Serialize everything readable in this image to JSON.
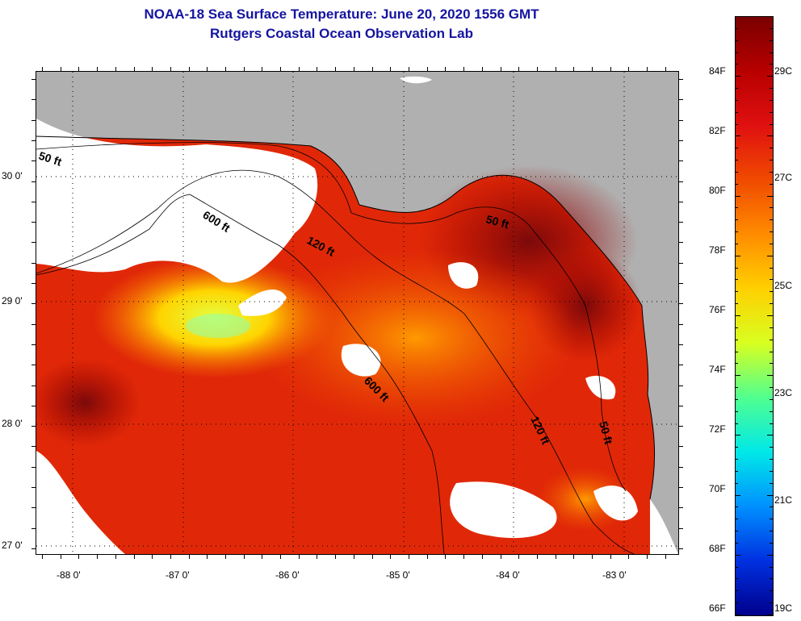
{
  "header": {
    "title_line1": "NOAA-18 Sea Surface Temperature:  June 20, 2020 1556 GMT",
    "title_line2": "Rutgers Coastal Ocean Observation Lab"
  },
  "map": {
    "latitude_labels": [
      "30 0'",
      "29 0'",
      "28 0'",
      "27 0'"
    ],
    "longitude_labels": [
      "-88 0'",
      "-87 0'",
      "-86 0'",
      "-85 0'",
      "-84 0'",
      "-83 0'"
    ],
    "depth_contours": [
      "50 ft",
      "600 ft",
      "120 ft",
      "50 ft",
      "600 ft",
      "120 ft",
      "50 ft"
    ]
  },
  "colorbar": {
    "fahrenheit_labels": [
      "84F",
      "82F",
      "80F",
      "78F",
      "76F",
      "74F",
      "72F",
      "70F",
      "68F",
      "66F"
    ],
    "celsius_labels": [
      "29C",
      "27C",
      "25C",
      "23C",
      "21C",
      "19C"
    ],
    "colors": [
      "#7a0000",
      "#b80000",
      "#e01010",
      "#f04a00",
      "#ff8c00",
      "#ffd000",
      "#d8ff20",
      "#50ff90",
      "#00e8e8",
      "#0090ff",
      "#0030e0",
      "#00008c"
    ]
  }
}
